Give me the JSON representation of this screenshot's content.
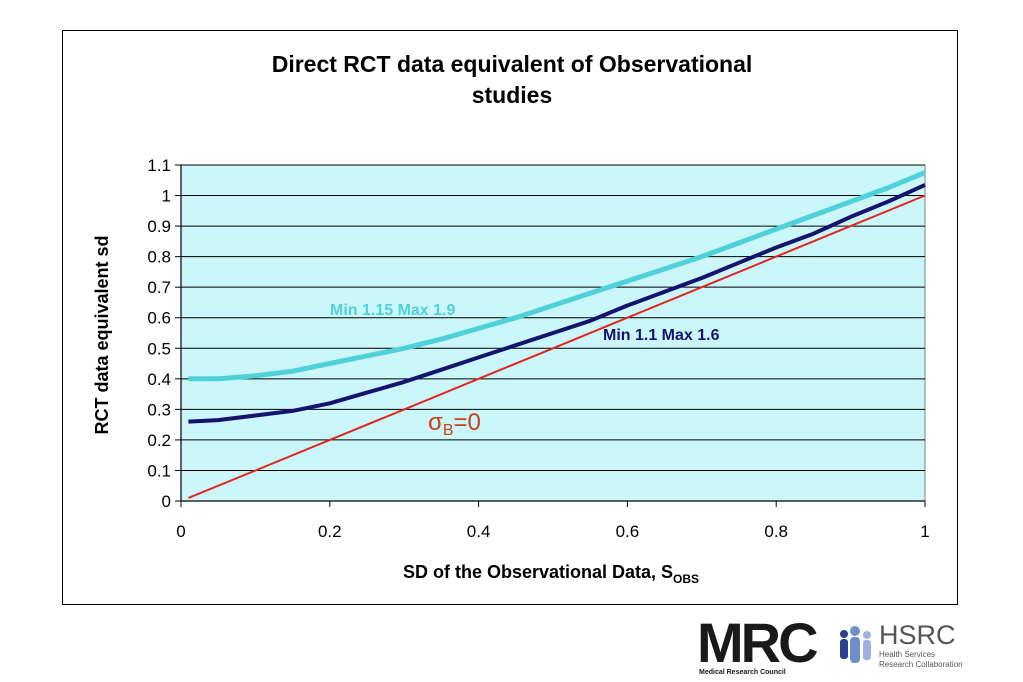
{
  "chart_data": {
    "type": "line",
    "title_line1": "Direct RCT data equivalent of Observational",
    "title_line2": "studies",
    "xlabel_prefix": "SD of the Observational Data, S",
    "xlabel_subscript": "OBS",
    "ylabel": "RCT data equivalent sd",
    "xlim": [
      0,
      1
    ],
    "ylim": [
      0,
      1.1
    ],
    "x_ticks": [
      "0",
      "0.2",
      "0.4",
      "0.6",
      "0.8",
      "1"
    ],
    "y_ticks": [
      "0",
      "0.1",
      "0.2",
      "0.3",
      "0.4",
      "0.5",
      "0.6",
      "0.7",
      "0.8",
      "0.9",
      "1",
      "1.1"
    ],
    "grid": "horizontal",
    "plot_background": "#ccf7fa",
    "series": [
      {
        "name": "Min 1.15 Max 1.9",
        "color": "#4fd1d9",
        "x": [
          0.01,
          0.05,
          0.1,
          0.15,
          0.2,
          0.25,
          0.3,
          0.35,
          0.4,
          0.45,
          0.5,
          0.55,
          0.6,
          0.65,
          0.7,
          0.75,
          0.8,
          0.85,
          0.9,
          0.95,
          1.0
        ],
        "y": [
          0.4,
          0.4,
          0.41,
          0.425,
          0.45,
          0.475,
          0.5,
          0.53,
          0.565,
          0.6,
          0.64,
          0.68,
          0.72,
          0.76,
          0.8,
          0.845,
          0.89,
          0.935,
          0.98,
          1.025,
          1.075
        ]
      },
      {
        "name": "Min 1.1 Max 1.6",
        "color": "#14146e",
        "x": [
          0.01,
          0.05,
          0.1,
          0.15,
          0.2,
          0.25,
          0.3,
          0.35,
          0.4,
          0.45,
          0.5,
          0.55,
          0.6,
          0.65,
          0.7,
          0.75,
          0.8,
          0.85,
          0.9,
          0.95,
          1.0
        ],
        "y": [
          0.26,
          0.265,
          0.28,
          0.295,
          0.32,
          0.355,
          0.39,
          0.43,
          0.47,
          0.51,
          0.55,
          0.59,
          0.64,
          0.685,
          0.73,
          0.78,
          0.83,
          0.875,
          0.93,
          0.98,
          1.035
        ]
      },
      {
        "name": "σB=0",
        "label_sigma": "σ",
        "label_sub": "B",
        "label_rest": "=0",
        "color": "#e0261f",
        "x": [
          0.01,
          0.1,
          0.2,
          0.3,
          0.4,
          0.5,
          0.6,
          0.7,
          0.8,
          0.9,
          1.0
        ],
        "y": [
          0.01,
          0.1,
          0.2,
          0.3,
          0.4,
          0.5,
          0.6,
          0.7,
          0.8,
          0.9,
          1.0
        ]
      }
    ]
  },
  "logos": {
    "mrc": "MRC",
    "mrc_sub": "Medical Research Council",
    "hsrc": "HSRC",
    "hsrc_sub1": "Health Services",
    "hsrc_sub2": "Research Collaboration"
  }
}
